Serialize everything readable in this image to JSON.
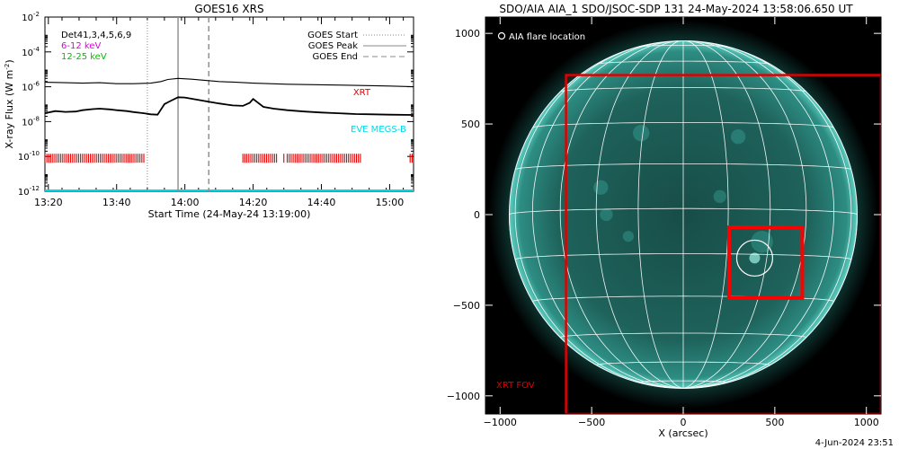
{
  "chart_data": [
    {
      "type": "line",
      "title": "GOES16 XRS",
      "xlabel": "Start Time (24-May-24 13:19:00)",
      "ylabel_prefix": "X-ray Flux (W m",
      "ylabel_exp": "-2",
      "ylabel_suffix": ")",
      "yscale": "log",
      "ylim": [
        1e-12,
        0.01
      ],
      "xlim": [
        "13:19",
        "15:07"
      ],
      "x_ticks": [
        "13:20",
        "13:40",
        "14:00",
        "14:20",
        "14:40",
        "15:00"
      ],
      "y_ticks": [
        {
          "value": -12,
          "label_base": "10",
          "label_exp": "-12"
        },
        {
          "value": -10,
          "label_base": "10",
          "label_exp": "-10"
        },
        {
          "value": -8,
          "label_base": "10",
          "label_exp": "-8"
        },
        {
          "value": -6,
          "label_base": "10",
          "label_exp": "-6"
        },
        {
          "value": -4,
          "label_base": "10",
          "label_exp": "-4"
        },
        {
          "value": -2,
          "label_base": "10",
          "label_exp": "-2"
        }
      ],
      "legend_left": {
        "det_label": "Det41,3,4,5,6,9",
        "band1": "6-12 keV",
        "band2": "12-25 keV",
        "band1_color": "#e000e0",
        "band2_color": "#00c000"
      },
      "legend_right": {
        "start_label": "GOES Start",
        "peak_label": "GOES Peak",
        "end_label": "GOES End"
      },
      "annotations": {
        "xrt_label": "XRT",
        "eve_label": "EVE MEGS-B",
        "xrt_color": "#e00000",
        "eve_color": "#00d8e8"
      },
      "events": {
        "goes_start": "13:49",
        "goes_peak": "13:58",
        "goes_end": "14:07"
      },
      "series": [
        {
          "x": [
            "13:19",
            "13:25",
            "13:30",
            "13:35",
            "13:40",
            "13:45",
            "13:50",
            "13:53",
            "13:55",
            "13:58",
            "14:02",
            "14:05",
            "14:10",
            "14:15",
            "14:20",
            "14:25",
            "14:30",
            "14:40",
            "14:50",
            "15:00",
            "15:07"
          ],
          "values": [
            1.8e-06,
            1.7e-06,
            1.6e-06,
            1.7e-06,
            1.5e-06,
            1.5e-06,
            1.6e-06,
            2e-06,
            2.6e-06,
            3e-06,
            2.7e-06,
            2.4e-06,
            2e-06,
            1.8e-06,
            1.6e-06,
            1.5e-06,
            1.4e-06,
            1.3e-06,
            1.2e-06,
            1.1e-06,
            1e-06
          ],
          "color": "#000000"
        },
        {
          "x": [
            "13:19",
            "13:22",
            "13:25",
            "13:28",
            "13:30",
            "13:33",
            "13:35",
            "13:38",
            "13:40",
            "13:43",
            "13:45",
            "13:48",
            "13:50",
            "13:52",
            "13:53",
            "13:54",
            "13:56",
            "13:58",
            "14:00",
            "14:03",
            "14:06",
            "14:10",
            "14:14",
            "14:17",
            "14:19",
            "14:20",
            "14:21",
            "14:23",
            "14:26",
            "14:30",
            "14:35",
            "14:40",
            "14:45",
            "14:50",
            "14:55",
            "15:00",
            "15:07"
          ],
          "values": [
            3e-08,
            4e-08,
            3.6e-08,
            3.8e-08,
            4.5e-08,
            5.2e-08,
            5.5e-08,
            5e-08,
            4.5e-08,
            4e-08,
            3.5e-08,
            3e-08,
            2.6e-08,
            2.5e-08,
            5e-08,
            1e-07,
            1.6e-07,
            2.5e-07,
            2.4e-07,
            1.9e-07,
            1.5e-07,
            1.1e-07,
            8.5e-08,
            8e-08,
            1.2e-07,
            2e-07,
            1.4e-07,
            7e-08,
            5.5e-08,
            4.5e-08,
            3.8e-08,
            3.3e-08,
            3e-08,
            2.7e-08,
            2.6e-08,
            2.5e-08,
            2.4e-08
          ],
          "color": "#000000"
        }
      ],
      "xrt_coverage": [
        [
          "13:19",
          "13:48"
        ],
        [
          "14:17",
          "14:27"
        ],
        [
          "14:30",
          "14:52"
        ],
        [
          "15:06",
          "15:07"
        ]
      ],
      "xrt_gap_single": "14:29"
    },
    {
      "type": "image",
      "title": "SDO/AIA AIA_1 SDO/JSOC-SDP 131 24-May-2024 13:58:06.650 UT",
      "xlabel": "X (arcsec)",
      "xlim": [
        -1080,
        1080
      ],
      "ylim": [
        -1100,
        1090
      ],
      "x_ticks": [
        -1000,
        -500,
        0,
        500,
        1000
      ],
      "y_ticks": [
        1000,
        500,
        0,
        -500,
        -1000
      ],
      "legend": "AIA flare location",
      "fov_label": "XRT FOV",
      "fov_color": "#e00000",
      "disk_color": "#2aa79b",
      "solar_radius_arcsec": 950,
      "xrt_fov": {
        "x": [
          -640,
          1080
        ],
        "y": [
          -1100,
          770
        ]
      },
      "flare_box": {
        "x": [
          250,
          650
        ],
        "y": [
          -460,
          -70
        ]
      },
      "flare_location": {
        "x": 390,
        "y": -240
      },
      "footer": "4-Jun-2024 23:51"
    }
  ]
}
